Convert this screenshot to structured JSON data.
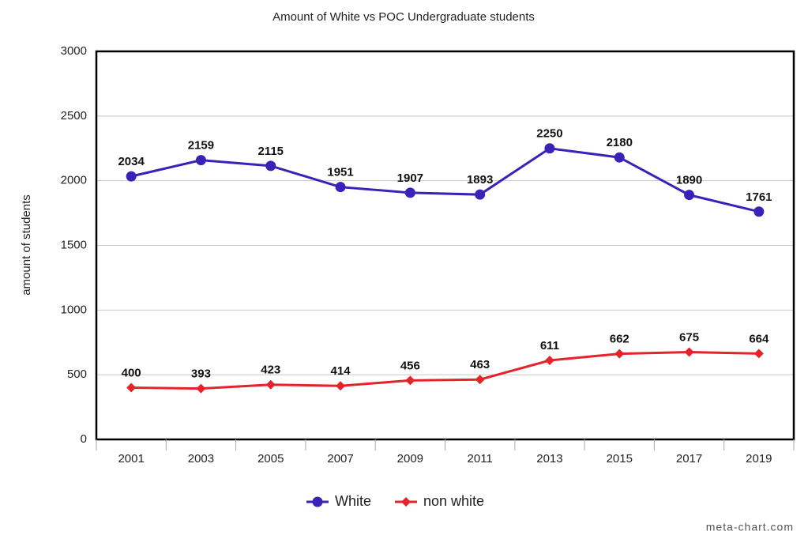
{
  "chart_data": {
    "type": "line",
    "title": "Amount of White vs POC Undergraduate students",
    "y_label": "amount of students",
    "categories": [
      "2001",
      "2003",
      "2005",
      "2007",
      "2009",
      "2011",
      "2013",
      "2015",
      "2017",
      "2019"
    ],
    "series": [
      {
        "name": "White",
        "color": "#3a22b8",
        "marker": "circle",
        "values": [
          2034,
          2159,
          2115,
          1951,
          1907,
          1893,
          2250,
          2180,
          1890,
          1761
        ]
      },
      {
        "name": "non white",
        "color": "#e5232a",
        "marker": "diamond",
        "values": [
          400,
          393,
          423,
          414,
          456,
          463,
          611,
          662,
          675,
          664
        ]
      }
    ],
    "ylim": [
      0,
      3000
    ],
    "yticks": [
      0,
      500,
      1000,
      1500,
      2000,
      2500,
      3000
    ],
    "grid": true,
    "legend": "bottom",
    "credit": "meta-chart.com"
  }
}
